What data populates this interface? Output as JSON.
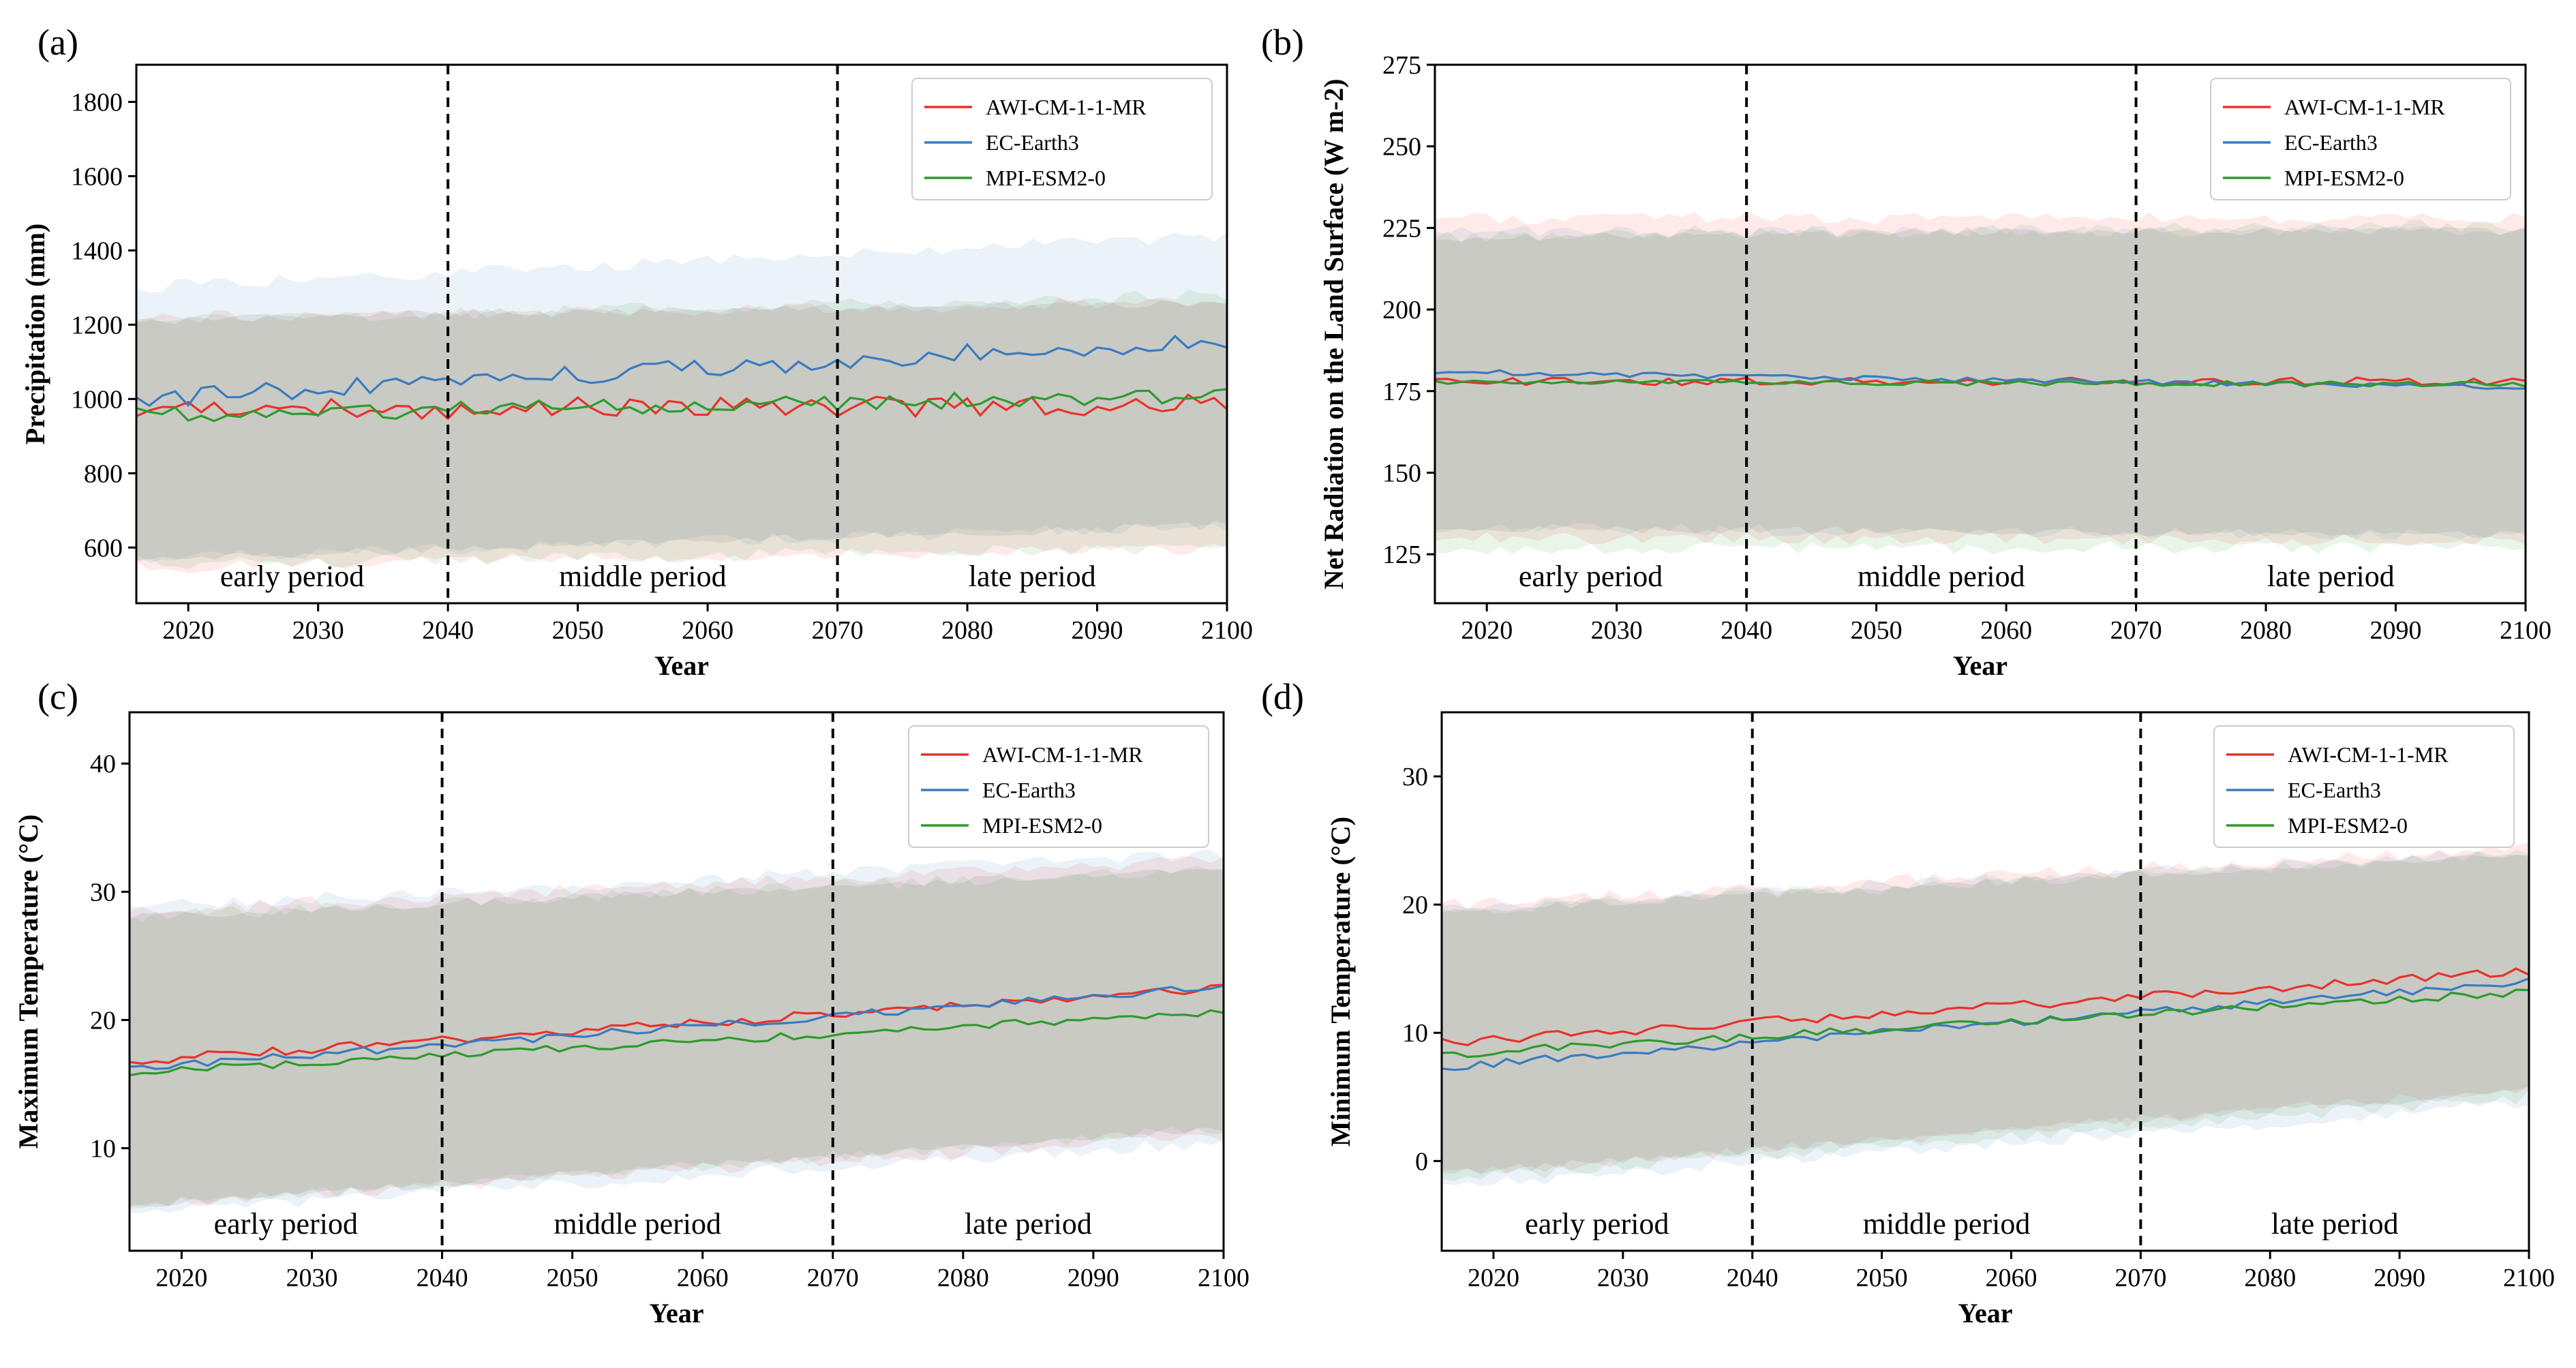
{
  "legend_series": [
    "AWI-CM-1-1-MR",
    "EC-Earth3",
    "MPI-ESM2-0"
  ],
  "period_labels": [
    "early period",
    "middle period",
    "late period"
  ],
  "period_boundaries": [
    2040,
    2070
  ],
  "colors": {
    "AWI-CM-1-1-MR": "#e8322b",
    "EC-Earth3": "#3a7bbf",
    "MPI-ESM2-0": "#2e9a2e"
  },
  "chart_data": [
    {
      "panel": "(a)",
      "type": "line",
      "xlabel": "Year",
      "ylabel": "Precipitation (mm)",
      "xlim": [
        2016,
        2100
      ],
      "ylim": [
        450,
        1900
      ],
      "xticks": [
        2020,
        2030,
        2040,
        2050,
        2060,
        2070,
        2080,
        2090,
        2100
      ],
      "yticks": [
        600,
        800,
        1000,
        1200,
        1400,
        1600,
        1800
      ],
      "x_start": 2016,
      "x_end": 2100,
      "legend": "top-right",
      "grid": false,
      "series": [
        {
          "name": "AWI-CM-1-1-MR",
          "start": 970,
          "end": 985,
          "amp": 28,
          "band_lower": [
            545,
            600
          ],
          "band_upper": [
            1220,
            1260
          ]
        },
        {
          "name": "EC-Earth3",
          "start": 1000,
          "end": 1160,
          "amp": 25,
          "band_lower": [
            570,
            660
          ],
          "band_upper": [
            1300,
            1440
          ]
        },
        {
          "name": "MPI-ESM2-0",
          "start": 955,
          "end": 1010,
          "amp": 22,
          "band_lower": [
            555,
            600
          ],
          "band_upper": [
            1210,
            1280
          ]
        }
      ]
    },
    {
      "panel": "(b)",
      "type": "line",
      "xlabel": "Year",
      "ylabel": "Net Radiation on the Land Surface (W m-2)",
      "xlim": [
        2016,
        2100
      ],
      "ylim": [
        110,
        275
      ],
      "xticks": [
        2020,
        2030,
        2040,
        2050,
        2060,
        2070,
        2080,
        2090,
        2100
      ],
      "yticks": [
        125,
        150,
        175,
        200,
        225,
        250,
        275
      ],
      "x_start": 2016,
      "x_end": 2100,
      "legend": "top-right",
      "grid": false,
      "series": [
        {
          "name": "AWI-CM-1-1-MR",
          "start": 178,
          "end": 178,
          "amp": 1.2,
          "band_lower": [
            130,
            129
          ],
          "band_upper": [
            228,
            228
          ]
        },
        {
          "name": "EC-Earth3",
          "start": 181,
          "end": 176,
          "amp": 0.8,
          "band_lower": [
            133,
            131
          ],
          "band_upper": [
            224,
            224
          ]
        },
        {
          "name": "MPI-ESM2-0",
          "start": 178,
          "end": 177,
          "amp": 0.8,
          "band_lower": [
            127,
            127
          ],
          "band_upper": [
            222,
            226
          ]
        }
      ]
    },
    {
      "panel": "(c)",
      "type": "line",
      "xlabel": "Year",
      "ylabel": "Maximum Temperature (°C)",
      "xlim": [
        2016,
        2100
      ],
      "ylim": [
        2,
        44
      ],
      "xticks": [
        2020,
        2030,
        2040,
        2050,
        2060,
        2070,
        2080,
        2090,
        2100
      ],
      "yticks": [
        10,
        20,
        30,
        40
      ],
      "x_start": 2016,
      "x_end": 2100,
      "legend": "top-right",
      "grid": false,
      "series": [
        {
          "name": "AWI-CM-1-1-MR",
          "start": 16.8,
          "end": 22.5,
          "amp": 0.35,
          "band_lower": [
            5.5,
            11.0
          ],
          "band_upper": [
            28.5,
            32.5
          ]
        },
        {
          "name": "EC-Earth3",
          "start": 16.2,
          "end": 22.6,
          "amp": 0.3,
          "band_lower": [
            5.0,
            10.5
          ],
          "band_upper": [
            28.8,
            33.0
          ]
        },
        {
          "name": "MPI-ESM2-0",
          "start": 15.9,
          "end": 20.6,
          "amp": 0.3,
          "band_lower": [
            5.5,
            11.5
          ],
          "band_upper": [
            28.0,
            31.8
          ]
        }
      ]
    },
    {
      "panel": "(d)",
      "type": "line",
      "xlabel": "Year",
      "ylabel": "Minimum Temperature (°C)",
      "xlim": [
        2016,
        2100
      ],
      "ylim": [
        -7,
        35
      ],
      "xticks": [
        2020,
        2030,
        2040,
        2050,
        2060,
        2070,
        2080,
        2090,
        2100
      ],
      "yticks": [
        0,
        10,
        20,
        30
      ],
      "x_start": 2016,
      "x_end": 2100,
      "legend": "top-right",
      "grid": false,
      "series": [
        {
          "name": "AWI-CM-1-1-MR",
          "start": 9.2,
          "end": 14.8,
          "amp": 0.35,
          "band_lower": [
            -1.0,
            5.5
          ],
          "band_upper": [
            20.0,
            24.5
          ]
        },
        {
          "name": "EC-Earth3",
          "start": 7.3,
          "end": 14.0,
          "amp": 0.3,
          "band_lower": [
            -2.0,
            4.5
          ],
          "band_upper": [
            19.8,
            24.2
          ]
        },
        {
          "name": "MPI-ESM2-0",
          "start": 8.3,
          "end": 13.2,
          "amp": 0.3,
          "band_lower": [
            -1.5,
            5.0
          ],
          "band_upper": [
            19.5,
            24.0
          ]
        }
      ]
    }
  ]
}
